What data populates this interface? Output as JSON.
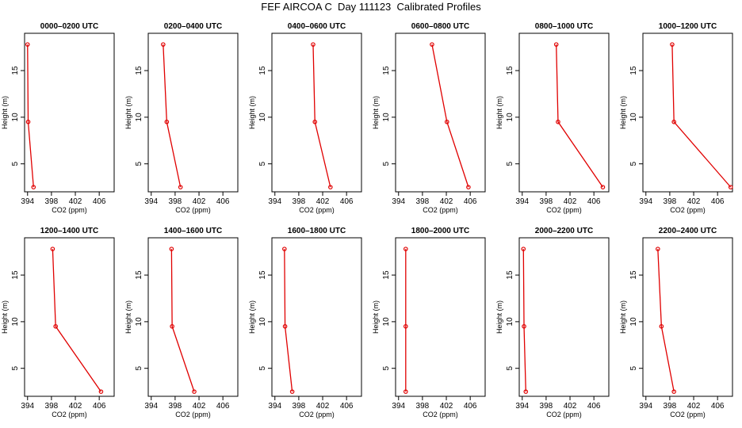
{
  "title": "FEF AIRCOA C  Day 111123  Calibrated Profiles",
  "chart_data": {
    "type": "line",
    "xlabel": "CO2 (ppm)",
    "ylabel": "Height (m)",
    "xlim": [
      393.5,
      408.5
    ],
    "ylim": [
      2,
      19
    ],
    "xticks": [
      394,
      398,
      402,
      406
    ],
    "xtick_labels": [
      "394",
      "398",
      "402",
      "406"
    ],
    "yticks": [
      5,
      10,
      15
    ],
    "ytick_labels": [
      "5",
      "10",
      "15"
    ],
    "line_color": "#e00000",
    "heights": [
      2.5,
      9.5,
      17.8
    ],
    "panels": [
      {
        "title": "0000–0200 UTC",
        "co2": [
          395.0,
          394.1,
          394.0
        ]
      },
      {
        "title": "0200–0400 UTC",
        "co2": [
          398.9,
          396.6,
          396.0
        ]
      },
      {
        "title": "0400–0600 UTC",
        "co2": [
          403.3,
          400.7,
          400.4
        ]
      },
      {
        "title": "0600–0800 UTC",
        "co2": [
          405.7,
          402.1,
          399.6
        ]
      },
      {
        "title": "0800–1000 UTC",
        "co2": [
          407.5,
          400.0,
          399.7
        ]
      },
      {
        "title": "1000–1200 UTC",
        "co2": [
          408.2,
          398.7,
          398.4
        ]
      },
      {
        "title": "1200–1400 UTC",
        "co2": [
          406.3,
          398.7,
          398.2
        ]
      },
      {
        "title": "1400–1600 UTC",
        "co2": [
          401.2,
          397.5,
          397.4
        ]
      },
      {
        "title": "1600–1800 UTC",
        "co2": [
          396.9,
          395.7,
          395.6
        ]
      },
      {
        "title": "1800–2000 UTC",
        "co2": [
          395.2,
          395.2,
          395.2
        ]
      },
      {
        "title": "2000–2200 UTC",
        "co2": [
          394.6,
          394.3,
          394.2
        ]
      },
      {
        "title": "2200–2400 UTC",
        "co2": [
          398.7,
          396.6,
          396.0
        ]
      }
    ]
  }
}
